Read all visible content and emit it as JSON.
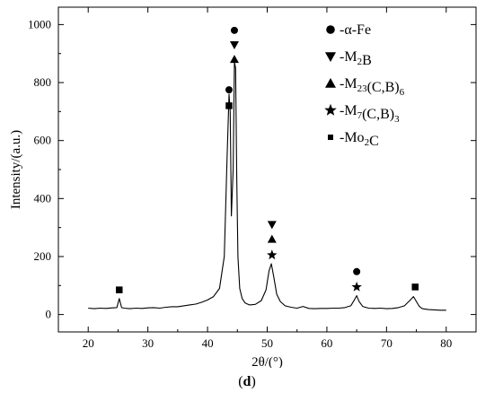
{
  "caption": "(d)",
  "chart_data": {
    "type": "line",
    "xlabel": "2θ/(°)",
    "ylabel": "Intensity/(a.u.)",
    "xlim": [
      15,
      85
    ],
    "ylim": [
      -60,
      1060
    ],
    "xticks": [
      20,
      30,
      40,
      50,
      60,
      70,
      80
    ],
    "yticks": [
      0,
      200,
      400,
      600,
      800,
      1000
    ],
    "grid": false,
    "legend_position": "top-right",
    "line_color": "#000000",
    "legend": [
      {
        "marker": "circle",
        "prefix": "-α-Fe",
        "parts": [
          {
            "t": "-α-Fe",
            "sub": false
          }
        ]
      },
      {
        "marker": "triangle-down",
        "parts": [
          {
            "t": "-M",
            "sub": false
          },
          {
            "t": "2",
            "sub": true
          },
          {
            "t": "B",
            "sub": false
          }
        ]
      },
      {
        "marker": "triangle-up",
        "parts": [
          {
            "t": "-M",
            "sub": false
          },
          {
            "t": "23",
            "sub": true
          },
          {
            "t": "(C,B)",
            "sub": false
          },
          {
            "t": "6",
            "sub": true
          }
        ]
      },
      {
        "marker": "star",
        "parts": [
          {
            "t": "-M",
            "sub": false
          },
          {
            "t": "7",
            "sub": true
          },
          {
            "t": "(C,B)",
            "sub": false
          },
          {
            "t": "3",
            "sub": true
          }
        ]
      },
      {
        "marker": "square",
        "parts": [
          {
            "t": "-Mo",
            "sub": false
          },
          {
            "t": "2",
            "sub": true
          },
          {
            "t": "C",
            "sub": false
          }
        ]
      }
    ],
    "series": [
      {
        "x": [
          20.0,
          21,
          22,
          23,
          24,
          24.8,
          25.2,
          25.6,
          26,
          27,
          28,
          29,
          30,
          31,
          32,
          33,
          34,
          35,
          36,
          37,
          38,
          39,
          40,
          41,
          42,
          42.8,
          43.3,
          43.6,
          43.8,
          44.0,
          44.3,
          44.5,
          44.7,
          44.9,
          45.1,
          45.4,
          45.8,
          46.3,
          47,
          48,
          49,
          49.8,
          50.3,
          50.7,
          51.1,
          51.6,
          52.2,
          53,
          54,
          55,
          56,
          57,
          58,
          59,
          60,
          61,
          62,
          63,
          64,
          64.6,
          65.0,
          65.4,
          66,
          67,
          68,
          69,
          70,
          71,
          72,
          73,
          74.0,
          74.5,
          75.0,
          75.5,
          76,
          77,
          78,
          79,
          80.0
        ],
        "y": [
          22,
          20,
          22,
          21,
          23,
          24,
          55,
          24,
          22,
          20,
          22,
          21,
          23,
          24,
          22,
          25,
          27,
          27,
          30,
          33,
          36,
          42,
          50,
          62,
          90,
          200,
          560,
          760,
          700,
          340,
          500,
          870,
          850,
          470,
          200,
          90,
          55,
          40,
          33,
          35,
          48,
          85,
          150,
          175,
          130,
          70,
          45,
          30,
          25,
          22,
          28,
          21,
          20,
          21,
          21,
          22,
          22,
          24,
          30,
          50,
          65,
          45,
          28,
          22,
          21,
          22,
          20,
          21,
          24,
          30,
          50,
          62,
          45,
          28,
          20,
          17,
          16,
          15,
          15
        ]
      }
    ],
    "annotations": [
      {
        "x": 25.2,
        "y": 85,
        "marker": "square"
      },
      {
        "x": 43.6,
        "y": 720,
        "marker": "square"
      },
      {
        "x": 43.6,
        "y": 775,
        "marker": "circle"
      },
      {
        "x": 44.5,
        "y": 880,
        "marker": "triangle-up"
      },
      {
        "x": 44.5,
        "y": 930,
        "marker": "triangle-down"
      },
      {
        "x": 44.5,
        "y": 980,
        "marker": "circle"
      },
      {
        "x": 50.8,
        "y": 205,
        "marker": "star"
      },
      {
        "x": 50.8,
        "y": 260,
        "marker": "triangle-up"
      },
      {
        "x": 50.8,
        "y": 310,
        "marker": "triangle-down"
      },
      {
        "x": 65.0,
        "y": 95,
        "marker": "star"
      },
      {
        "x": 65.0,
        "y": 148,
        "marker": "circle"
      },
      {
        "x": 74.8,
        "y": 95,
        "marker": "square"
      }
    ]
  }
}
